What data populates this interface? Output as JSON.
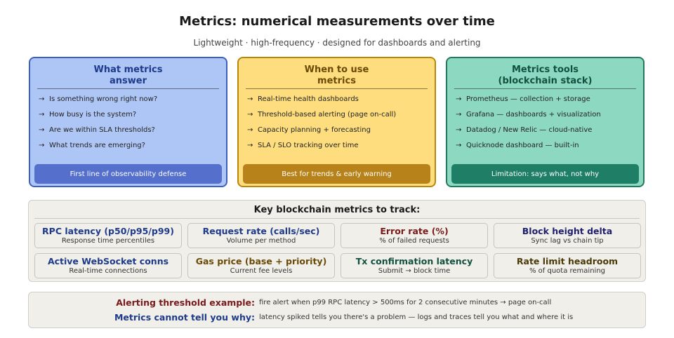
{
  "title": "Metrics: numerical measurements over time",
  "subtitle": "Lightweight · high-frequency · designed for dashboards and alerting",
  "colors": {
    "blue_fill": "#aec6f5",
    "blue_border": "#3f5fbf",
    "yellow_fill": "#fddd7d",
    "yellow_border": "#b8860b",
    "green_fill": "#8dd8c0",
    "green_border": "#227a5e",
    "blue_text": "#1e3a8a",
    "red_text": "#7a1a1a",
    "brown_text": "#6b4a06",
    "green_text": "#12513f"
  },
  "cards": [
    {
      "title_line1": "What metrics",
      "title_line2": "answer",
      "items": [
        "Is something wrong right now?",
        "How busy is the system?",
        "Are we within SLA thresholds?",
        "What trends are emerging?"
      ],
      "footer": "First line of observability defense"
    },
    {
      "title_line1": "When to use",
      "title_line2": "metrics",
      "items": [
        "Real-time health dashboards",
        "Threshold-based alerting (page on-call)",
        "Capacity planning + forecasting",
        "SLA / SLO tracking over time"
      ],
      "footer": "Best for trends & early warning"
    },
    {
      "title_line1": "Metrics tools",
      "title_line2": "(blockchain stack)",
      "items": [
        "Prometheus — collection + storage",
        "Grafana — dashboards + visualization",
        "Datadog / New Relic — cloud-native",
        "Quicknode dashboard — built-in"
      ],
      "footer": "Limitation: says what, not why"
    }
  ],
  "arrow": "→",
  "key_metrics": {
    "title": "Key blockchain metrics to track:",
    "tiles": [
      {
        "name": "RPC latency (p50/p95/p99)",
        "desc": "Response time percentiles"
      },
      {
        "name": "Request rate (calls/sec)",
        "desc": "Volume per method"
      },
      {
        "name": "Error rate (%)",
        "desc": "% of failed requests"
      },
      {
        "name": "Block height delta",
        "desc": "Sync lag vs chain tip"
      },
      {
        "name": "Active WebSocket conns",
        "desc": "Real-time connections"
      },
      {
        "name": "Gas price (base + priority)",
        "desc": "Current fee levels"
      },
      {
        "name": "Tx confirmation latency",
        "desc": "Submit → block time"
      },
      {
        "name": "Rate limit headroom",
        "desc": "% of quota remaining"
      }
    ]
  },
  "alerting": {
    "example_label": "Alerting threshold example:",
    "example_text": "fire alert when p99 RPC latency > 500ms for 2 consecutive minutes → page on-call",
    "why_label": "Metrics cannot tell you why:",
    "why_text": "latency spiked tells you there's a problem — logs and traces tell you what and where it is"
  }
}
